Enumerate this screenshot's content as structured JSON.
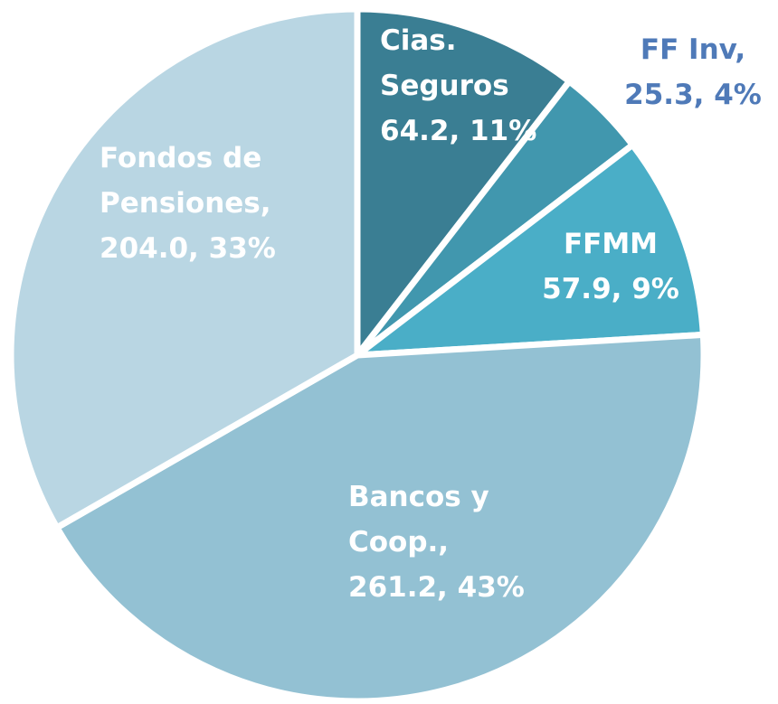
{
  "chart_data": {
    "type": "pie",
    "categories": [
      "Cias. Seguros",
      "FF Inv,",
      "FFMM",
      "Bancos y Coop.,",
      "Fondos de Pensiones,"
    ],
    "values": [
      64.2,
      25.3,
      57.9,
      261.2,
      204.0
    ],
    "value_labels": [
      "64.2, 11%",
      "25.3, 4%",
      "57.9, 9%",
      "261.2, 43%",
      "204.0, 33%"
    ],
    "colors": [
      "#3a7e93",
      "#4197ae",
      "#4aaec7",
      "#93c1d3",
      "#b9d6e3"
    ],
    "label_colors": [
      "#ffffff",
      "#4f7ab8",
      "#ffffff",
      "#ffffff",
      "#ffffff"
    ]
  }
}
